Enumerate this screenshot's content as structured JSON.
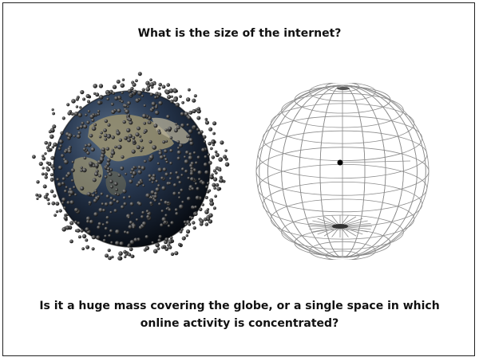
{
  "heading": "What is the size of the internet?",
  "caption": {
    "line1": "Is it a huge mass covering the globe, or a single space in which",
    "line2": "online activity is concentrated?"
  },
  "colors": {
    "text": "#111111",
    "border": "#222222",
    "ocean": "#1e2e44",
    "land": "#9a9270",
    "dot": "#3a3a3a",
    "wire": "#8c8c8c"
  }
}
